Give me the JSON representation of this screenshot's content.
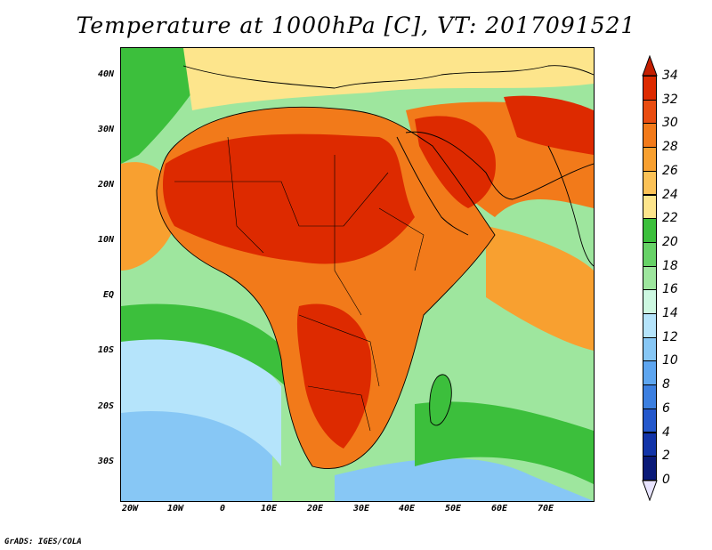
{
  "title": "Temperature at 1000hPa [C], VT: 2017091521",
  "footer": "GrADS: IGES/COLA",
  "lat_labels": [
    "40N",
    "30N",
    "20N",
    "10N",
    "EQ",
    "10S",
    "20S",
    "30S"
  ],
  "lon_labels": [
    "20W",
    "10W",
    "0",
    "10E",
    "20E",
    "30E",
    "40E",
    "50E",
    "60E",
    "70E"
  ],
  "colorbar": {
    "labels": [
      "34",
      "32",
      "30",
      "28",
      "26",
      "24",
      "22",
      "20",
      "18",
      "16",
      "14",
      "12",
      "10",
      "8",
      "6",
      "4",
      "2",
      "0"
    ],
    "colors": [
      "#dd2a00",
      "#e94c10",
      "#f27a1a",
      "#f8a030",
      "#fbc257",
      "#fde58c",
      "#3cbf3c",
      "#67d267",
      "#9ee69e",
      "#cdf8e1",
      "#b5e4fb",
      "#87c7f5",
      "#5ea6f0",
      "#3c7fe0",
      "#2458cc",
      "#1234a8",
      "#0a1a78"
    ],
    "top_arrow_color": "#c41e00",
    "bottom_arrow_color": "#e8e4ff"
  },
  "field_colors": {
    "ocean_cold": "#87c7f5",
    "ocean_cool": "#b5e4fb",
    "ocean_mild": "#9ee69e",
    "ocean_green": "#3cbf3c",
    "ocean_warm": "#fde58c",
    "ocean_hot": "#f8a030",
    "land_warm": "#f27a1a",
    "land_hot": "#dd2a00"
  }
}
